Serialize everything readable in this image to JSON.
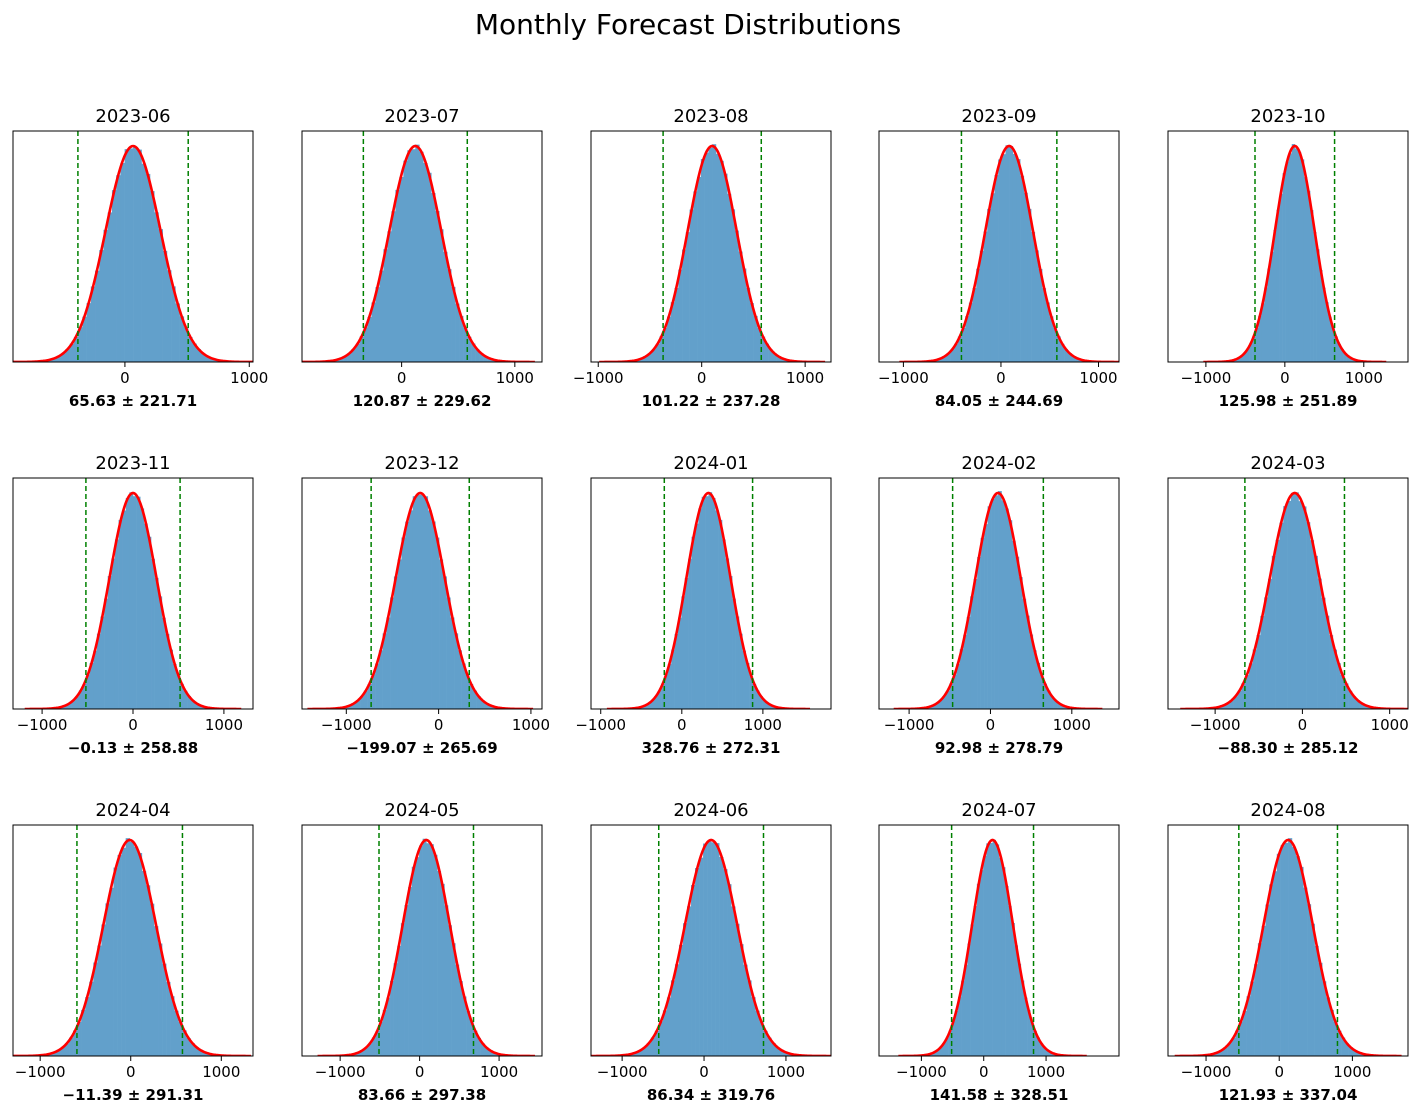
{
  "title": "Monthly Forecast Distributions",
  "chart_data": [
    {
      "type": "histogram",
      "title": "2023-06",
      "mean": 65.63,
      "std": 221.71,
      "stat_label": "65.63 ± 221.71",
      "xticks": [
        0,
        1000
      ],
      "tick_labels": [
        "0",
        "1000"
      ],
      "xlim": [
        -900,
        1030
      ],
      "vlines": [
        -378,
        509
      ],
      "curve": "normal-pdf",
      "interval": "mean ± 2σ"
    },
    {
      "type": "histogram",
      "title": "2023-07",
      "mean": 120.87,
      "std": 229.62,
      "stat_label": "120.87 ± 229.62",
      "xticks": [
        0,
        1000
      ],
      "tick_labels": [
        "0",
        "1000"
      ],
      "xlim": [
        -880,
        1240
      ],
      "vlines": [
        -338,
        580
      ],
      "curve": "normal-pdf",
      "interval": "mean ± 2σ"
    },
    {
      "type": "histogram",
      "title": "2023-08",
      "mean": 101.22,
      "std": 237.28,
      "stat_label": "101.22 ± 237.28",
      "xticks": [
        -1000,
        0,
        1000
      ],
      "tick_labels": [
        "−1000",
        "0",
        "1000"
      ],
      "xlim": [
        -1070,
        1250
      ],
      "vlines": [
        -373,
        576
      ],
      "curve": "normal-pdf",
      "interval": "mean ± 2σ"
    },
    {
      "type": "histogram",
      "title": "2023-09",
      "mean": 84.05,
      "std": 244.69,
      "stat_label": "84.05 ± 244.69",
      "xticks": [
        -1000,
        0,
        1000
      ],
      "tick_labels": [
        "−1000",
        "0",
        "1000"
      ],
      "xlim": [
        -1250,
        1210
      ],
      "vlines": [
        -405,
        573
      ],
      "curve": "normal-pdf",
      "interval": "mean ± 2σ"
    },
    {
      "type": "histogram",
      "title": "2023-10",
      "mean": 125.98,
      "std": 251.89,
      "stat_label": "125.98 ± 251.89",
      "xticks": [
        -1000,
        0,
        1000
      ],
      "tick_labels": [
        "−1000",
        "0",
        "1000"
      ],
      "xlim": [
        -1480,
        1560
      ],
      "vlines": [
        -378,
        630
      ],
      "curve": "normal-pdf",
      "interval": "mean ± 2σ"
    },
    {
      "type": "histogram",
      "title": "2023-11",
      "mean": -0.13,
      "std": 258.88,
      "stat_label": "−0.13 ± 258.88",
      "xticks": [
        -1000,
        0,
        1000
      ],
      "tick_labels": [
        "−1000",
        "0",
        "1000"
      ],
      "xlim": [
        -1320,
        1320
      ],
      "vlines": [
        -518,
        518
      ],
      "curve": "normal-pdf",
      "interval": "mean ± 2σ"
    },
    {
      "type": "histogram",
      "title": "2023-12",
      "mean": -199.07,
      "std": 265.69,
      "stat_label": "−199.07 ± 265.69",
      "xticks": [
        -1000,
        0,
        1000
      ],
      "tick_labels": [
        "−1000",
        "0",
        "1000"
      ],
      "xlim": [
        -1480,
        1120
      ],
      "vlines": [
        -731,
        332
      ],
      "curve": "normal-pdf",
      "interval": "mean ± 2σ"
    },
    {
      "type": "histogram",
      "title": "2024-01",
      "mean": 328.76,
      "std": 272.31,
      "stat_label": "328.76 ± 272.31",
      "xticks": [
        -1000,
        0,
        1000
      ],
      "tick_labels": [
        "−1000",
        "0",
        "1000"
      ],
      "xlim": [
        -1120,
        1840
      ],
      "vlines": [
        -216,
        873
      ],
      "curve": "normal-pdf",
      "interval": "mean ± 2σ"
    },
    {
      "type": "histogram",
      "title": "2024-02",
      "mean": 92.98,
      "std": 278.79,
      "stat_label": "92.98 ± 278.79",
      "xticks": [
        -1000,
        0,
        1000
      ],
      "tick_labels": [
        "−1000",
        "0",
        "1000"
      ],
      "xlim": [
        -1370,
        1580
      ],
      "vlines": [
        -465,
        650
      ],
      "curve": "normal-pdf",
      "interval": "mean ± 2σ"
    },
    {
      "type": "histogram",
      "title": "2024-03",
      "mean": -88.3,
      "std": 285.12,
      "stat_label": "−88.30 ± 285.12",
      "xticks": [
        -1000,
        0,
        1000
      ],
      "tick_labels": [
        "−1000",
        "0",
        "1000"
      ],
      "xlim": [
        -1540,
        1210
      ],
      "vlines": [
        -659,
        482
      ],
      "curve": "normal-pdf",
      "interval": "mean ± 2σ"
    },
    {
      "type": "histogram",
      "title": "2024-04",
      "mean": -11.39,
      "std": 291.31,
      "stat_label": "−11.39 ± 291.31",
      "xticks": [
        -1000,
        0,
        1000
      ],
      "tick_labels": [
        "−1000",
        "0",
        "1000"
      ],
      "xlim": [
        -1300,
        1350
      ],
      "vlines": [
        -594,
        571
      ],
      "curve": "normal-pdf",
      "interval": "mean ± 2σ"
    },
    {
      "type": "histogram",
      "title": "2024-05",
      "mean": 83.66,
      "std": 297.38,
      "stat_label": "83.66 ± 297.38",
      "xticks": [
        -1000,
        0,
        1000
      ],
      "tick_labels": [
        "−1000",
        "0",
        "1000"
      ],
      "xlim": [
        -1480,
        1540
      ],
      "vlines": [
        -511,
        678
      ],
      "curve": "normal-pdf",
      "interval": "mean ± 2σ"
    },
    {
      "type": "histogram",
      "title": "2024-06",
      "mean": 86.34,
      "std": 319.76,
      "stat_label": "86.34 ± 319.76",
      "xticks": [
        -1000,
        0,
        1000
      ],
      "tick_labels": [
        "−1000",
        "0",
        "1000"
      ],
      "xlim": [
        -1380,
        1550
      ],
      "vlines": [
        -553,
        726
      ],
      "curve": "normal-pdf",
      "interval": "mean ± 2σ"
    },
    {
      "type": "histogram",
      "title": "2024-07",
      "mean": 141.58,
      "std": 328.51,
      "stat_label": "141.58 ± 328.51",
      "xticks": [
        -1000,
        0,
        1000
      ],
      "tick_labels": [
        "−1000",
        "0",
        "1000"
      ],
      "xlim": [
        -1680,
        2170
      ],
      "vlines": [
        -515,
        799
      ],
      "curve": "normal-pdf",
      "interval": "mean ± 2σ"
    },
    {
      "type": "histogram",
      "title": "2024-08",
      "mean": 121.93,
      "std": 337.04,
      "stat_label": "121.93 ± 337.04",
      "xticks": [
        -1000,
        0,
        1000
      ],
      "tick_labels": [
        "−1000",
        "0",
        "1000"
      ],
      "xlim": [
        -1520,
        1760
      ],
      "vlines": [
        -552,
        796
      ],
      "curve": "normal-pdf",
      "interval": "mean ± 2σ"
    }
  ],
  "colors": {
    "hist": "#62a0cb",
    "curve": "#ff0000",
    "interval": "#008000"
  }
}
